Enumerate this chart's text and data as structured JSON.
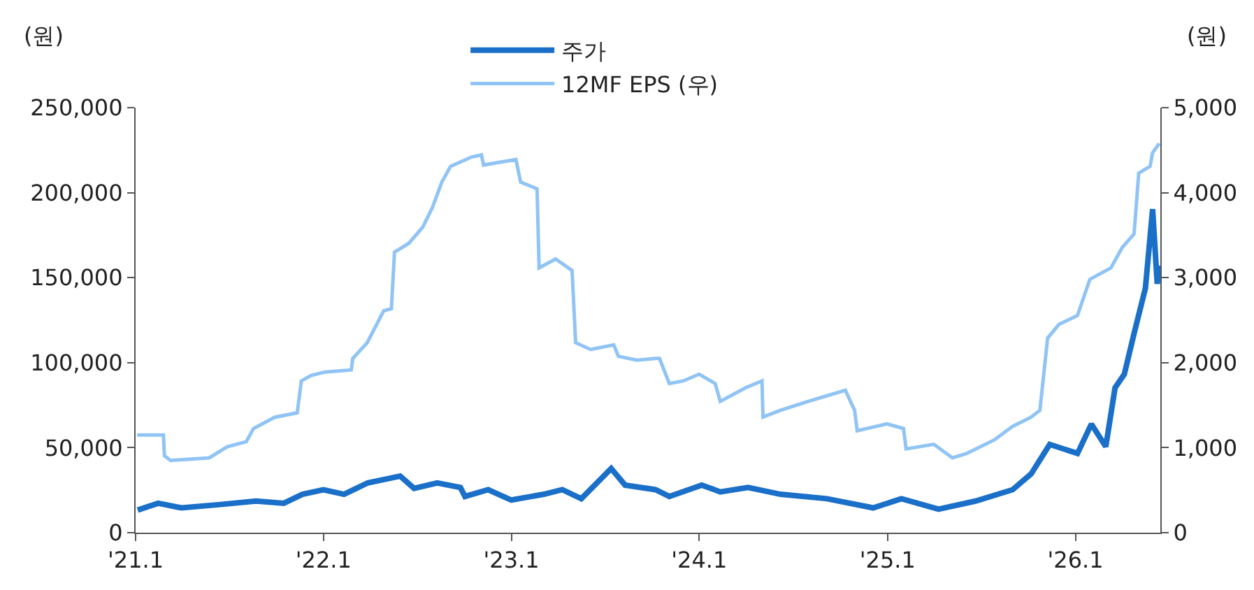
{
  "chart_data": {
    "type": "line",
    "ylabel": "(원)",
    "y2label": "(원)",
    "legend": "top",
    "xlim": [
      "2021-01-01",
      "2026-06-15"
    ],
    "xticks": [
      {
        "value": "2021-01-01",
        "label": "'21.1"
      },
      {
        "value": "2022-01-01",
        "label": "'22.1"
      },
      {
        "value": "2023-01-01",
        "label": "'23.1"
      },
      {
        "value": "2024-01-01",
        "label": "'24.1"
      },
      {
        "value": "2025-01-01",
        "label": "'25.1"
      },
      {
        "value": "2026-01-01",
        "label": "'26.1"
      }
    ],
    "ylim": [
      0,
      250000
    ],
    "yticks": [
      0,
      {
        "value": 50000,
        "label": "50,000"
      },
      {
        "value": 100000,
        "label": "100,000"
      },
      {
        "value": 150000,
        "label": "150,000"
      },
      {
        "value": 200000,
        "label": "200,000"
      },
      {
        "value": 250000,
        "label": "250,000"
      }
    ],
    "y2lim": [
      0,
      5000
    ],
    "y2ticks": [
      0,
      {
        "value": 1000,
        "label": "1,000"
      },
      {
        "value": 2000,
        "label": "2,000"
      },
      {
        "value": 3000,
        "label": "3,000"
      },
      {
        "value": 4000,
        "label": "4,000"
      },
      {
        "value": 5000,
        "label": "5,000"
      }
    ],
    "series": [
      {
        "name": "주가",
        "color": "#1a6fc9",
        "x": [
          "2021-01-05",
          "2021-02-14",
          "2021-03-31",
          "2021-06-12",
          "2021-08-23",
          "2021-10-16",
          "2021-11-21",
          "2022-01-01",
          "2022-02-10",
          "2022-03-28",
          "2022-05-30",
          "2022-06-26",
          "2022-08-10",
          "2022-09-24",
          "2022-10-03",
          "2022-11-17",
          "2023-01-01",
          "2023-03-05",
          "2023-04-10",
          "2023-05-17",
          "2023-07-14",
          "2023-08-10",
          "2023-10-08",
          "2023-11-04",
          "2024-01-06",
          "2024-02-11",
          "2024-04-05",
          "2024-06-07",
          "2024-09-05",
          "2024-12-04",
          "2025-01-28",
          "2025-04-10",
          "2025-06-21",
          "2025-09-01",
          "2025-10-07",
          "2025-11-12",
          "2026-01-05",
          "2026-02-01",
          "2026-03-01",
          "2026-03-19",
          "2026-04-06",
          "2026-04-25",
          "2026-05-17",
          "2026-05-31",
          "2026-06-09",
          "2026-06-13"
        ],
        "values": [
          13300,
          17300,
          14600,
          16500,
          18600,
          17300,
          22600,
          25300,
          22600,
          29300,
          33300,
          26100,
          29300,
          26600,
          21300,
          25300,
          19200,
          22600,
          25300,
          20000,
          37800,
          28000,
          25300,
          21300,
          28000,
          24000,
          26600,
          22600,
          20000,
          14600,
          20000,
          13800,
          18600,
          25300,
          34600,
          51900,
          46600,
          63900,
          50600,
          85200,
          93200,
          117200,
          143800,
          190300,
          146400,
          157100
        ]
      },
      {
        "name": "12MF EPS (우)",
        "color": "#90c4f5",
        "axis": "y2",
        "x": [
          "2021-01-04",
          "2021-02-24",
          "2021-02-26",
          "2021-03-10",
          "2021-05-24",
          "2021-06-28",
          "2021-08-04",
          "2021-08-18",
          "2021-09-28",
          "2021-11-11",
          "2021-11-19",
          "2021-12-08",
          "2022-01-04",
          "2022-02-24",
          "2022-02-27",
          "2022-03-27",
          "2022-04-28",
          "2022-05-13",
          "2022-05-19",
          "2022-06-16",
          "2022-07-13",
          "2022-08-01",
          "2022-08-19",
          "2022-09-05",
          "2022-10-16",
          "2022-11-04",
          "2022-11-08",
          "2023-01-10",
          "2023-01-19",
          "2023-02-20",
          "2023-02-24",
          "2023-03-28",
          "2023-04-29",
          "2023-05-06",
          "2023-06-04",
          "2023-07-19",
          "2023-07-28",
          "2023-09-02",
          "2023-10-08",
          "2023-10-16",
          "2023-11-04",
          "2023-12-01",
          "2024-01-01",
          "2024-02-01",
          "2024-02-11",
          "2024-03-31",
          "2024-05-02",
          "2024-05-04",
          "2024-06-07",
          "2024-07-31",
          "2024-10-11",
          "2024-10-29",
          "2024-11-03",
          "2024-12-31",
          "2025-02-01",
          "2025-02-06",
          "2025-04-01",
          "2025-05-07",
          "2025-06-03",
          "2025-07-27",
          "2025-09-01",
          "2025-10-07",
          "2025-10-24",
          "2025-11-08",
          "2025-11-30",
          "2026-01-05",
          "2026-01-29",
          "2026-03-11",
          "2026-04-02",
          "2026-04-25",
          "2026-05-04",
          "2026-05-26",
          "2026-05-31",
          "2026-06-13"
        ],
        "values": [
          1150,
          1150,
          905,
          850,
          880,
          1010,
          1070,
          1225,
          1357,
          1410,
          1785,
          1850,
          1890,
          1915,
          2050,
          2235,
          2610,
          2635,
          3300,
          3405,
          3595,
          3830,
          4125,
          4310,
          4420,
          4445,
          4325,
          4390,
          4125,
          4045,
          3115,
          3220,
          3085,
          2235,
          2155,
          2210,
          2075,
          2030,
          2050,
          2050,
          1755,
          1785,
          1865,
          1755,
          1545,
          1705,
          1785,
          1360,
          1440,
          1545,
          1675,
          1440,
          1200,
          1280,
          1225,
          985,
          1040,
          880,
          930,
          1090,
          1250,
          1360,
          1440,
          2290,
          2450,
          2555,
          2980,
          3115,
          3355,
          3515,
          4230,
          4310,
          4470,
          4580
        ]
      }
    ]
  }
}
